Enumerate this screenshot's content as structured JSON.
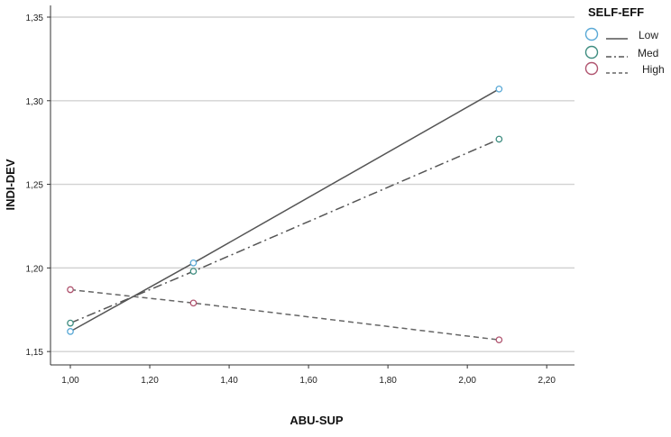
{
  "chart_data": {
    "type": "line",
    "xlabel": "ABU-SUP",
    "ylabel": "INDI-DEV",
    "xlim": [
      0.95,
      2.27
    ],
    "ylim": [
      1.142,
      1.357
    ],
    "xticks": [
      1.0,
      1.2,
      1.4,
      1.6,
      1.8,
      2.0,
      2.2
    ],
    "xtick_labels": [
      "1,00",
      "1,20",
      "1,40",
      "1,60",
      "1,80",
      "2,00",
      "2,20"
    ],
    "yticks": [
      1.15,
      1.2,
      1.25,
      1.3,
      1.35
    ],
    "ytick_labels": [
      "1,15",
      "1,20",
      "1,25",
      "1,30",
      "1,35"
    ],
    "grid": "horizontal",
    "legend": {
      "title": "SELF-EFF",
      "placement": "top-right outside"
    },
    "series": [
      {
        "name": "Low",
        "color": "#5aa9d6",
        "line_color": "#555555",
        "dash": "solid",
        "points": [
          [
            1.0,
            1.162
          ],
          [
            1.31,
            1.203
          ],
          [
            2.08,
            1.307
          ]
        ]
      },
      {
        "name": "Med",
        "color": "#3f8d80",
        "line_color": "#555555",
        "dash": "dashdot",
        "points": [
          [
            1.0,
            1.167
          ],
          [
            1.31,
            1.198
          ],
          [
            2.08,
            1.277
          ]
        ]
      },
      {
        "name": "High",
        "color": "#b0546f",
        "line_color": "#666666",
        "dash": "dashed",
        "points": [
          [
            1.0,
            1.187
          ],
          [
            1.31,
            1.179
          ],
          [
            2.08,
            1.157
          ]
        ]
      }
    ]
  }
}
